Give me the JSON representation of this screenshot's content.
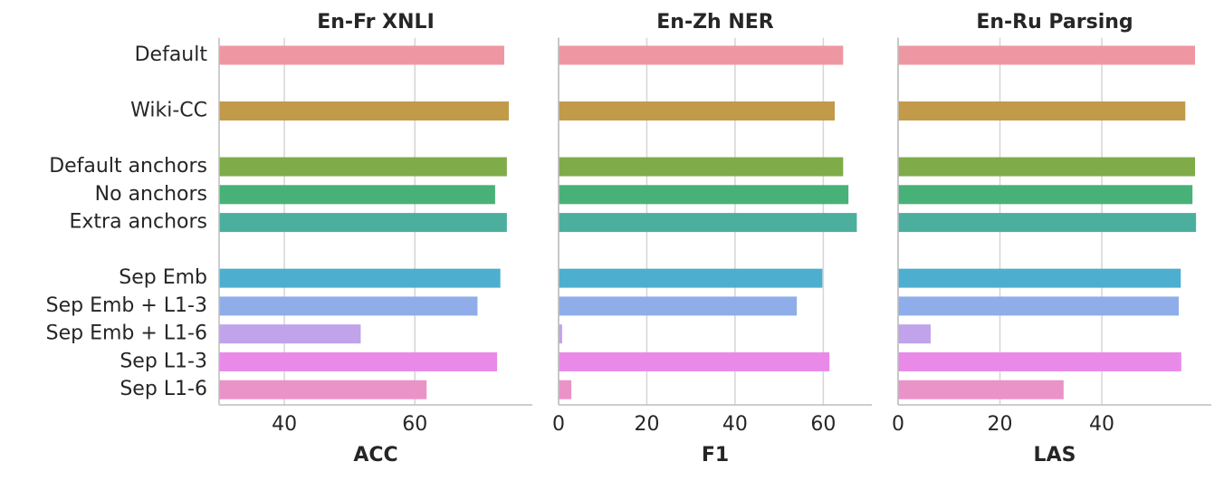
{
  "chart_data": [
    {
      "type": "barh",
      "title": "En-Fr XNLI",
      "xlabel": "ACC",
      "categories": [
        "Default",
        null,
        "Wiki-CC",
        null,
        "Default anchors",
        "No anchors",
        "Extra anchors",
        null,
        "Sep Emb",
        "Sep Emb + L1-3",
        "Sep Emb + L1-6",
        "Sep L1-3",
        "Sep L1-6"
      ],
      "values": [
        73.7,
        null,
        74.4,
        null,
        74.1,
        72.3,
        74.1,
        null,
        73.1,
        69.6,
        51.7,
        72.6,
        61.8
      ],
      "colors": [
        "#ee97a2",
        null,
        "#c19b4a",
        null,
        "#7fab49",
        "#48b178",
        "#4caf9e",
        null,
        "#4daed0",
        "#8faee9",
        "#c0a3eb",
        "#e98ae9",
        "#ea93c8"
      ],
      "xlim": [
        30,
        78
      ],
      "xticks": [
        40,
        60
      ],
      "grid": true
    },
    {
      "type": "barh",
      "title": "En-Zh NER",
      "xlabel": "F1",
      "values": [
        64.5,
        null,
        62.6,
        null,
        64.5,
        65.7,
        67.6,
        null,
        59.8,
        54.0,
        0.8,
        61.4,
        2.9
      ],
      "colors": [
        "#ee97a2",
        null,
        "#c19b4a",
        null,
        "#7fab49",
        "#48b178",
        "#4caf9e",
        null,
        "#4daed0",
        "#8faee9",
        "#c0a3eb",
        "#e98ae9",
        "#ea93c8"
      ],
      "xlim": [
        0,
        71
      ],
      "xticks": [
        0,
        20,
        40,
        60
      ],
      "grid": true
    },
    {
      "type": "barh",
      "title": "En-Ru Parsing",
      "xlabel": "LAS",
      "values": [
        58.3,
        null,
        56.4,
        null,
        58.3,
        57.8,
        58.5,
        null,
        55.5,
        55.1,
        6.4,
        55.6,
        32.5
      ],
      "colors": [
        "#ee97a2",
        null,
        "#c19b4a",
        null,
        "#7fab49",
        "#48b178",
        "#4caf9e",
        null,
        "#4daed0",
        "#8faee9",
        "#c0a3eb",
        "#e98ae9",
        "#ea93c8"
      ],
      "xlim": [
        0,
        61.5
      ],
      "xticks": [
        0,
        20,
        40
      ],
      "grid": true
    }
  ]
}
